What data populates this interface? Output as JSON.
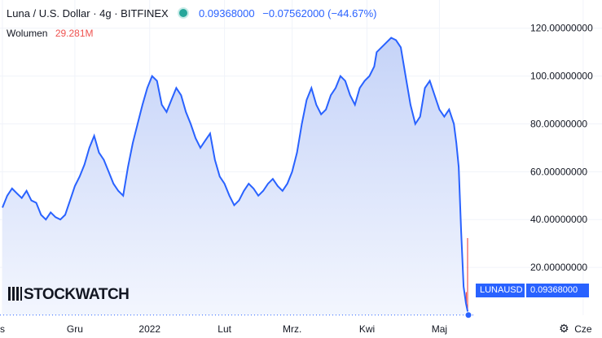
{
  "legend": {
    "symbol": "Luna / U.S. Dollar · 4g · BITFINEX",
    "last_value": "0.09368000",
    "change": "−0.07562000 (−44.67%)"
  },
  "volume": {
    "label": "Wolumen",
    "value": "29.281M"
  },
  "watermark": {
    "text": "STOCKWATCH"
  },
  "badges": {
    "ticker": "LUNAUSD",
    "price": "0.09368000"
  },
  "icons": {
    "gear": "gear-icon",
    "status": "status-dot-icon"
  },
  "colors": {
    "line": "#2962ff",
    "area_top": "#c5d3f8",
    "area_bottom": "#f3f6fe",
    "volume": "#ef5350",
    "grid": "#f0f3fa",
    "status": "#26a69a"
  },
  "chart_data": {
    "type": "area",
    "y_axis_position": "right",
    "ylim": [
      0,
      125
    ],
    "y_ticks": [
      20,
      40,
      60,
      80,
      100,
      120
    ],
    "y_tick_labels": [
      "20.00000000",
      "40.00000000",
      "60.00000000",
      "80.00000000",
      "100.00000000",
      "120.00000000"
    ],
    "x_tick_labels": [
      "s",
      "Gru",
      "2022",
      "Lut",
      "Mrz.",
      "Kwi",
      "Maj",
      "Cze"
    ],
    "x_tick_dates": [
      "2021-11-01",
      "2021-12-01",
      "2022-01-01",
      "2022-02-01",
      "2022-03-01",
      "2022-04-01",
      "2022-05-01",
      "2022-06-01"
    ],
    "x_range": [
      "2021-10-31",
      "2022-06-28"
    ],
    "grid": true,
    "last_price": 0.09368,
    "series": [
      {
        "x": [
          "2021-11-01",
          "2021-11-03",
          "2021-11-05",
          "2021-11-07",
          "2021-11-09",
          "2021-11-11",
          "2021-11-13",
          "2021-11-15",
          "2021-11-17",
          "2021-11-19",
          "2021-11-21",
          "2021-11-23",
          "2021-11-25",
          "2021-11-27",
          "2021-11-29",
          "2021-12-01",
          "2021-12-03",
          "2021-12-05",
          "2021-12-07",
          "2021-12-09",
          "2021-12-11",
          "2021-12-13",
          "2021-12-15",
          "2021-12-17",
          "2021-12-19",
          "2021-12-21",
          "2021-12-23",
          "2021-12-25",
          "2021-12-27",
          "2021-12-29",
          "2021-12-31",
          "2022-01-02",
          "2022-01-04",
          "2022-01-06",
          "2022-01-08",
          "2022-01-10",
          "2022-01-12",
          "2022-01-14",
          "2022-01-16",
          "2022-01-18",
          "2022-01-20",
          "2022-01-22",
          "2022-01-24",
          "2022-01-26",
          "2022-01-28",
          "2022-01-30",
          "2022-02-01",
          "2022-02-03",
          "2022-02-05",
          "2022-02-07",
          "2022-02-09",
          "2022-02-11",
          "2022-02-13",
          "2022-02-15",
          "2022-02-17",
          "2022-02-19",
          "2022-02-21",
          "2022-02-23",
          "2022-02-25",
          "2022-02-27",
          "2022-03-01",
          "2022-03-03",
          "2022-03-05",
          "2022-03-07",
          "2022-03-09",
          "2022-03-11",
          "2022-03-13",
          "2022-03-15",
          "2022-03-17",
          "2022-03-19",
          "2022-03-21",
          "2022-03-23",
          "2022-03-25",
          "2022-03-27",
          "2022-03-29",
          "2022-03-31",
          "2022-04-02",
          "2022-04-04",
          "2022-04-05",
          "2022-04-07",
          "2022-04-09",
          "2022-04-11",
          "2022-04-13",
          "2022-04-15",
          "2022-04-17",
          "2022-04-19",
          "2022-04-21",
          "2022-04-23",
          "2022-04-25",
          "2022-04-27",
          "2022-04-29",
          "2022-05-01",
          "2022-05-03",
          "2022-05-05",
          "2022-05-07",
          "2022-05-08",
          "2022-05-09",
          "2022-05-10",
          "2022-05-11",
          "2022-05-12",
          "2022-05-13"
        ],
        "y": [
          45,
          50,
          53,
          51,
          49,
          52,
          48,
          47,
          42,
          40,
          43,
          41,
          40,
          42,
          48,
          54,
          58,
          63,
          70,
          75,
          68,
          65,
          60,
          55,
          52,
          50,
          62,
          72,
          80,
          88,
          95,
          100,
          98,
          88,
          85,
          90,
          95,
          92,
          85,
          80,
          74,
          70,
          73,
          76,
          65,
          58,
          55,
          50,
          46,
          48,
          52,
          55,
          53,
          50,
          52,
          55,
          57,
          54,
          52,
          55,
          60,
          68,
          80,
          90,
          95,
          88,
          84,
          86,
          92,
          95,
          100,
          98,
          92,
          88,
          95,
          98,
          100,
          104,
          110,
          112,
          114,
          116,
          115,
          112,
          100,
          88,
          80,
          83,
          95,
          98,
          92,
          86,
          83,
          86,
          80,
          72,
          62,
          35,
          12,
          5,
          0.09368
        ]
      }
    ]
  }
}
